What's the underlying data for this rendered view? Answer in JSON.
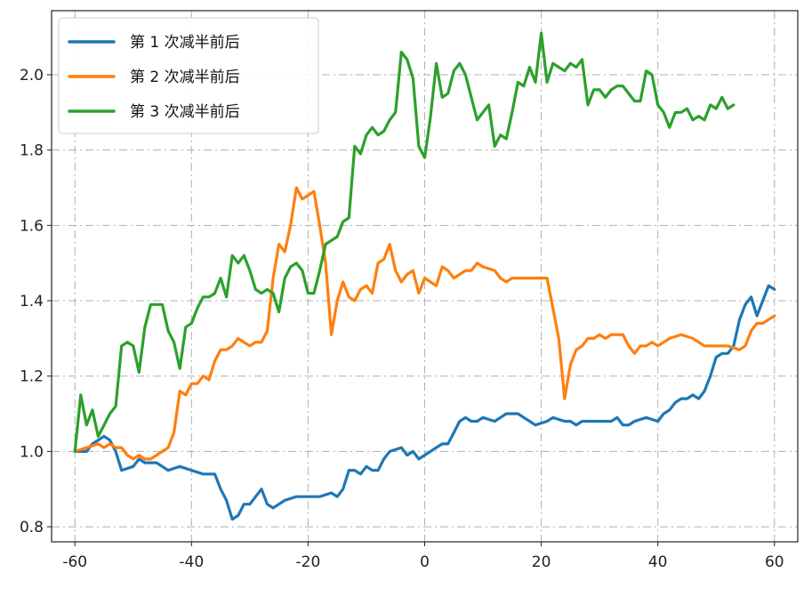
{
  "chart_data": {
    "type": "line",
    "title": "",
    "xlabel": "",
    "ylabel": "",
    "xlim": [
      -64,
      64
    ],
    "ylim": [
      0.76,
      2.17
    ],
    "xticks": [
      -60,
      -40,
      -20,
      0,
      20,
      40,
      60
    ],
    "yticks": [
      0.8,
      1.0,
      1.2,
      1.4,
      1.6,
      1.8,
      2.0
    ],
    "xtick_labels": [
      "-60",
      "-40",
      "-20",
      "0",
      "20",
      "40",
      "60"
    ],
    "ytick_labels": [
      "0.8",
      "1.0",
      "1.2",
      "1.4",
      "1.6",
      "1.8",
      "2.0"
    ],
    "grid": true,
    "legend_position": "top-left",
    "series": [
      {
        "name": "第 1 次减半前后",
        "color": "#1f77b4",
        "points": [
          [
            -60,
            1.0
          ],
          [
            -58,
            1.0
          ],
          [
            -57,
            1.02
          ],
          [
            -56,
            1.03
          ],
          [
            -55,
            1.04
          ],
          [
            -54,
            1.03
          ],
          [
            -53,
            1.0
          ],
          [
            -52,
            0.95
          ],
          [
            -50,
            0.96
          ],
          [
            -49,
            0.98
          ],
          [
            -48,
            0.97
          ],
          [
            -46,
            0.97
          ],
          [
            -45,
            0.96
          ],
          [
            -44,
            0.95
          ],
          [
            -42,
            0.96
          ],
          [
            -40,
            0.95
          ],
          [
            -38,
            0.94
          ],
          [
            -36,
            0.94
          ],
          [
            -35,
            0.9
          ],
          [
            -34,
            0.87
          ],
          [
            -33,
            0.82
          ],
          [
            -32,
            0.83
          ],
          [
            -31,
            0.86
          ],
          [
            -30,
            0.86
          ],
          [
            -29,
            0.88
          ],
          [
            -28,
            0.9
          ],
          [
            -27,
            0.86
          ],
          [
            -26,
            0.85
          ],
          [
            -25,
            0.86
          ],
          [
            -24,
            0.87
          ],
          [
            -22,
            0.88
          ],
          [
            -20,
            0.88
          ],
          [
            -18,
            0.88
          ],
          [
            -16,
            0.89
          ],
          [
            -15,
            0.88
          ],
          [
            -14,
            0.9
          ],
          [
            -13,
            0.95
          ],
          [
            -12,
            0.95
          ],
          [
            -11,
            0.94
          ],
          [
            -10,
            0.96
          ],
          [
            -9,
            0.95
          ],
          [
            -8,
            0.95
          ],
          [
            -7,
            0.98
          ],
          [
            -6,
            1.0
          ],
          [
            -4,
            1.01
          ],
          [
            -3,
            0.99
          ],
          [
            -2,
            1.0
          ],
          [
            -1,
            0.98
          ],
          [
            0,
            0.99
          ],
          [
            1,
            1.0
          ],
          [
            2,
            1.01
          ],
          [
            3,
            1.02
          ],
          [
            4,
            1.02
          ],
          [
            5,
            1.05
          ],
          [
            6,
            1.08
          ],
          [
            7,
            1.09
          ],
          [
            8,
            1.08
          ],
          [
            9,
            1.08
          ],
          [
            10,
            1.09
          ],
          [
            12,
            1.08
          ],
          [
            13,
            1.09
          ],
          [
            14,
            1.1
          ],
          [
            15,
            1.1
          ],
          [
            16,
            1.1
          ],
          [
            17,
            1.09
          ],
          [
            18,
            1.08
          ],
          [
            19,
            1.07
          ],
          [
            21,
            1.08
          ],
          [
            22,
            1.09
          ],
          [
            24,
            1.08
          ],
          [
            25,
            1.08
          ],
          [
            26,
            1.07
          ],
          [
            27,
            1.08
          ],
          [
            28,
            1.08
          ],
          [
            30,
            1.08
          ],
          [
            32,
            1.08
          ],
          [
            33,
            1.09
          ],
          [
            34,
            1.07
          ],
          [
            35,
            1.07
          ],
          [
            36,
            1.08
          ],
          [
            38,
            1.09
          ],
          [
            40,
            1.08
          ],
          [
            41,
            1.1
          ],
          [
            42,
            1.11
          ],
          [
            43,
            1.13
          ],
          [
            44,
            1.14
          ],
          [
            45,
            1.14
          ],
          [
            46,
            1.15
          ],
          [
            47,
            1.14
          ],
          [
            48,
            1.16
          ],
          [
            49,
            1.2
          ],
          [
            50,
            1.25
          ],
          [
            51,
            1.26
          ],
          [
            52,
            1.26
          ],
          [
            53,
            1.28
          ],
          [
            54,
            1.35
          ],
          [
            55,
            1.39
          ],
          [
            56,
            1.41
          ],
          [
            57,
            1.36
          ],
          [
            58,
            1.4
          ],
          [
            59,
            1.44
          ],
          [
            60,
            1.43
          ]
        ]
      },
      {
        "name": "第 2 次减半前后",
        "color": "#ff7f0e",
        "points": [
          [
            -60,
            1.0
          ],
          [
            -58,
            1.01
          ],
          [
            -56,
            1.02
          ],
          [
            -55,
            1.01
          ],
          [
            -54,
            1.02
          ],
          [
            -53,
            1.01
          ],
          [
            -52,
            1.01
          ],
          [
            -51,
            0.99
          ],
          [
            -50,
            0.98
          ],
          [
            -49,
            0.99
          ],
          [
            -48,
            0.98
          ],
          [
            -47,
            0.98
          ],
          [
            -46,
            0.99
          ],
          [
            -45,
            1.0
          ],
          [
            -44,
            1.01
          ],
          [
            -43,
            1.05
          ],
          [
            -42,
            1.16
          ],
          [
            -41,
            1.15
          ],
          [
            -40,
            1.18
          ],
          [
            -39,
            1.18
          ],
          [
            -38,
            1.2
          ],
          [
            -37,
            1.19
          ],
          [
            -36,
            1.24
          ],
          [
            -35,
            1.27
          ],
          [
            -34,
            1.27
          ],
          [
            -33,
            1.28
          ],
          [
            -32,
            1.3
          ],
          [
            -31,
            1.29
          ],
          [
            -30,
            1.28
          ],
          [
            -29,
            1.29
          ],
          [
            -28,
            1.29
          ],
          [
            -27,
            1.32
          ],
          [
            -26,
            1.46
          ],
          [
            -25,
            1.55
          ],
          [
            -24,
            1.53
          ],
          [
            -23,
            1.6
          ],
          [
            -22,
            1.7
          ],
          [
            -21,
            1.67
          ],
          [
            -20,
            1.68
          ],
          [
            -19,
            1.69
          ],
          [
            -18,
            1.6
          ],
          [
            -17,
            1.5
          ],
          [
            -16,
            1.31
          ],
          [
            -15,
            1.4
          ],
          [
            -14,
            1.45
          ],
          [
            -13,
            1.41
          ],
          [
            -12,
            1.4
          ],
          [
            -11,
            1.43
          ],
          [
            -10,
            1.44
          ],
          [
            -9,
            1.42
          ],
          [
            -8,
            1.5
          ],
          [
            -7,
            1.51
          ],
          [
            -6,
            1.55
          ],
          [
            -5,
            1.48
          ],
          [
            -4,
            1.45
          ],
          [
            -3,
            1.47
          ],
          [
            -2,
            1.48
          ],
          [
            -1,
            1.42
          ],
          [
            0,
            1.46
          ],
          [
            1,
            1.45
          ],
          [
            2,
            1.44
          ],
          [
            3,
            1.49
          ],
          [
            4,
            1.48
          ],
          [
            5,
            1.46
          ],
          [
            6,
            1.47
          ],
          [
            7,
            1.48
          ],
          [
            8,
            1.48
          ],
          [
            9,
            1.5
          ],
          [
            10,
            1.49
          ],
          [
            12,
            1.48
          ],
          [
            13,
            1.46
          ],
          [
            14,
            1.45
          ],
          [
            15,
            1.46
          ],
          [
            16,
            1.46
          ],
          [
            18,
            1.46
          ],
          [
            20,
            1.46
          ],
          [
            21,
            1.46
          ],
          [
            22,
            1.38
          ],
          [
            23,
            1.3
          ],
          [
            24,
            1.14
          ],
          [
            25,
            1.23
          ],
          [
            26,
            1.27
          ],
          [
            27,
            1.28
          ],
          [
            28,
            1.3
          ],
          [
            29,
            1.3
          ],
          [
            30,
            1.31
          ],
          [
            31,
            1.3
          ],
          [
            32,
            1.31
          ],
          [
            34,
            1.31
          ],
          [
            35,
            1.28
          ],
          [
            36,
            1.26
          ],
          [
            37,
            1.28
          ],
          [
            38,
            1.28
          ],
          [
            39,
            1.29
          ],
          [
            40,
            1.28
          ],
          [
            42,
            1.3
          ],
          [
            44,
            1.31
          ],
          [
            46,
            1.3
          ],
          [
            48,
            1.28
          ],
          [
            50,
            1.28
          ],
          [
            52,
            1.28
          ],
          [
            54,
            1.27
          ],
          [
            55,
            1.28
          ],
          [
            56,
            1.32
          ],
          [
            57,
            1.34
          ],
          [
            58,
            1.34
          ],
          [
            59,
            1.35
          ],
          [
            60,
            1.36
          ]
        ]
      },
      {
        "name": "第 3 次减半前后",
        "color": "#2ca02c",
        "points": [
          [
            -60,
            1.0
          ],
          [
            -59,
            1.15
          ],
          [
            -58,
            1.07
          ],
          [
            -57,
            1.11
          ],
          [
            -56,
            1.04
          ],
          [
            -55,
            1.07
          ],
          [
            -54,
            1.1
          ],
          [
            -53,
            1.12
          ],
          [
            -52,
            1.28
          ],
          [
            -51,
            1.29
          ],
          [
            -50,
            1.28
          ],
          [
            -49,
            1.21
          ],
          [
            -48,
            1.33
          ],
          [
            -47,
            1.39
          ],
          [
            -46,
            1.39
          ],
          [
            -45,
            1.39
          ],
          [
            -44,
            1.32
          ],
          [
            -43,
            1.29
          ],
          [
            -42,
            1.22
          ],
          [
            -41,
            1.33
          ],
          [
            -40,
            1.34
          ],
          [
            -39,
            1.38
          ],
          [
            -38,
            1.41
          ],
          [
            -37,
            1.41
          ],
          [
            -36,
            1.42
          ],
          [
            -35,
            1.46
          ],
          [
            -34,
            1.41
          ],
          [
            -33,
            1.52
          ],
          [
            -32,
            1.5
          ],
          [
            -31,
            1.52
          ],
          [
            -30,
            1.48
          ],
          [
            -29,
            1.43
          ],
          [
            -28,
            1.42
          ],
          [
            -27,
            1.43
          ],
          [
            -26,
            1.42
          ],
          [
            -25,
            1.37
          ],
          [
            -24,
            1.46
          ],
          [
            -23,
            1.49
          ],
          [
            -22,
            1.5
          ],
          [
            -21,
            1.48
          ],
          [
            -20,
            1.42
          ],
          [
            -19,
            1.42
          ],
          [
            -18,
            1.48
          ],
          [
            -17,
            1.55
          ],
          [
            -16,
            1.56
          ],
          [
            -15,
            1.57
          ],
          [
            -14,
            1.61
          ],
          [
            -13,
            1.62
          ],
          [
            -12,
            1.81
          ],
          [
            -11,
            1.79
          ],
          [
            -10,
            1.84
          ],
          [
            -9,
            1.86
          ],
          [
            -8,
            1.84
          ],
          [
            -7,
            1.85
          ],
          [
            -6,
            1.88
          ],
          [
            -5,
            1.9
          ],
          [
            -4,
            2.06
          ],
          [
            -3,
            2.04
          ],
          [
            -2,
            1.99
          ],
          [
            -1,
            1.81
          ],
          [
            0,
            1.78
          ],
          [
            1,
            1.89
          ],
          [
            2,
            2.03
          ],
          [
            3,
            1.94
          ],
          [
            4,
            1.95
          ],
          [
            5,
            2.01
          ],
          [
            6,
            2.03
          ],
          [
            7,
            2.0
          ],
          [
            8,
            1.94
          ],
          [
            9,
            1.88
          ],
          [
            10,
            1.9
          ],
          [
            11,
            1.92
          ],
          [
            12,
            1.81
          ],
          [
            13,
            1.84
          ],
          [
            14,
            1.83
          ],
          [
            15,
            1.9
          ],
          [
            16,
            1.98
          ],
          [
            17,
            1.97
          ],
          [
            18,
            2.02
          ],
          [
            19,
            1.98
          ],
          [
            20,
            2.11
          ],
          [
            21,
            1.98
          ],
          [
            22,
            2.03
          ],
          [
            23,
            2.02
          ],
          [
            24,
            2.01
          ],
          [
            25,
            2.03
          ],
          [
            26,
            2.02
          ],
          [
            27,
            2.04
          ],
          [
            28,
            1.92
          ],
          [
            29,
            1.96
          ],
          [
            30,
            1.96
          ],
          [
            31,
            1.94
          ],
          [
            32,
            1.96
          ],
          [
            33,
            1.97
          ],
          [
            34,
            1.97
          ],
          [
            35,
            1.95
          ],
          [
            36,
            1.93
          ],
          [
            37,
            1.93
          ],
          [
            38,
            2.01
          ],
          [
            39,
            2.0
          ],
          [
            40,
            1.92
          ],
          [
            41,
            1.9
          ],
          [
            42,
            1.86
          ],
          [
            43,
            1.9
          ],
          [
            44,
            1.9
          ],
          [
            45,
            1.91
          ],
          [
            46,
            1.88
          ],
          [
            47,
            1.89
          ],
          [
            48,
            1.88
          ],
          [
            49,
            1.92
          ],
          [
            50,
            1.91
          ],
          [
            51,
            1.94
          ],
          [
            52,
            1.91
          ],
          [
            53,
            1.92
          ]
        ]
      }
    ]
  }
}
